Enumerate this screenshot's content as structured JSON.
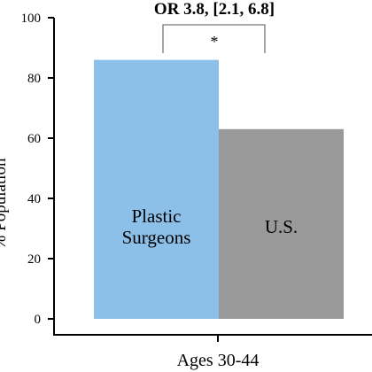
{
  "chart_data": {
    "type": "bar",
    "title": "OR 3.8, [2.1, 6.8]",
    "ylabel": "% Population",
    "xlabel": "Ages 30-44",
    "ylim": [
      0,
      100
    ],
    "yticks": [
      0,
      20,
      40,
      60,
      80,
      100
    ],
    "categories": [
      "Plastic Surgeons",
      "U.S."
    ],
    "bar_text": [
      [
        "Plastic",
        "Surgeons"
      ],
      [
        "U.S."
      ]
    ],
    "values": [
      86,
      63
    ],
    "colors": [
      "#8dc0e8",
      "#999999"
    ],
    "significance_marker": "*",
    "grid": false
  }
}
